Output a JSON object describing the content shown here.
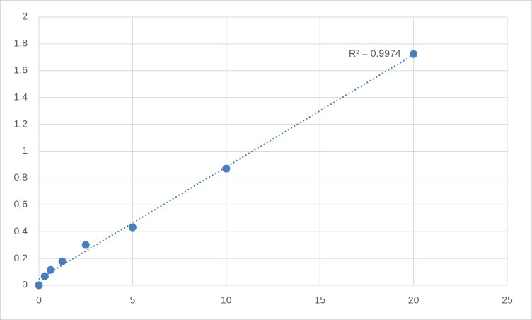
{
  "chart_data": {
    "type": "scatter",
    "x": [
      0,
      0.3125,
      0.625,
      1.25,
      2.5,
      5,
      10,
      20
    ],
    "values": [
      0,
      0.068,
      0.115,
      0.178,
      0.3,
      0.432,
      0.87,
      1.725
    ],
    "color": "#4a7ebb",
    "xlim": [
      0,
      25
    ],
    "xticks": [
      0,
      5,
      10,
      15,
      20,
      25
    ],
    "ylim": [
      0,
      2
    ],
    "yticks": [
      0,
      0.2,
      0.4,
      0.6,
      0.8,
      1,
      1.2,
      1.4,
      1.6,
      1.8,
      2
    ],
    "grid": true,
    "trendline": "linear",
    "annotation": "R² = 0.9974"
  }
}
